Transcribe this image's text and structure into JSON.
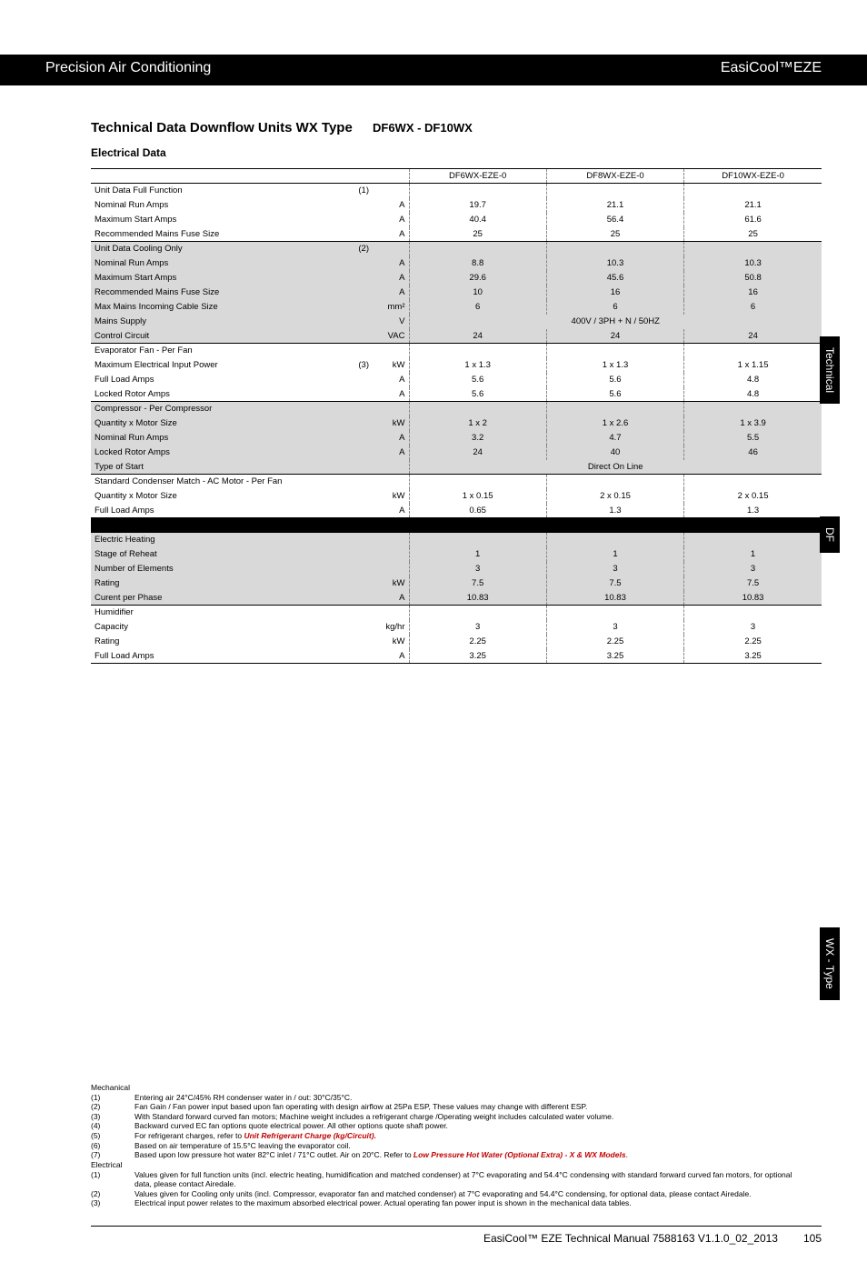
{
  "header": {
    "left": "Precision Air Conditioning",
    "right": "EasiCool™EZE"
  },
  "title": {
    "main": "Technical Data Downflow Units WX Type",
    "sub": "DF6WX - DF10WX"
  },
  "subsection": "Electrical Data",
  "columns": [
    "DF6WX-EZE-0",
    "DF8WX-EZE-0",
    "DF10WX-EZE-0"
  ],
  "groups": [
    {
      "label": "Unit Data Full Function",
      "note": "(1)",
      "shaded": false,
      "rows": [
        {
          "label": "Nominal Run Amps",
          "unit": "A",
          "vals": [
            "19.7",
            "21.1",
            "21.1"
          ]
        },
        {
          "label": "Maximum Start Amps",
          "unit": "A",
          "vals": [
            "40.4",
            "56.4",
            "61.6"
          ]
        },
        {
          "label": "Recommended Mains Fuse Size",
          "unit": "A",
          "vals": [
            "25",
            "25",
            "25"
          ]
        }
      ]
    },
    {
      "label": "Unit Data Cooling Only",
      "note": "(2)",
      "shaded": true,
      "rows": [
        {
          "label": "Nominal Run Amps",
          "unit": "A",
          "vals": [
            "8.8",
            "10.3",
            "10.3"
          ]
        },
        {
          "label": "Maximum Start Amps",
          "unit": "A",
          "vals": [
            "29.6",
            "45.6",
            "50.8"
          ]
        },
        {
          "label": "Recommended Mains Fuse Size",
          "unit": "A",
          "vals": [
            "10",
            "16",
            "16"
          ]
        },
        {
          "label": "Max Mains Incoming Cable Size",
          "unit": "mm²",
          "vals": [
            "6",
            "6",
            "6"
          ]
        },
        {
          "label": "Mains Supply",
          "unit": "V",
          "span": "400V / 3PH + N / 50HZ"
        },
        {
          "label": "Control Circuit",
          "unit": "VAC",
          "vals": [
            "24",
            "24",
            "24"
          ]
        }
      ]
    },
    {
      "label": "Evaporator Fan - Per Fan",
      "shaded": false,
      "rows": [
        {
          "label": "Maximum Electrical Input Power",
          "note": "(3)",
          "unit": "kW",
          "vals": [
            "1 x 1.3",
            "1 x 1.3",
            "1 x 1.15"
          ]
        },
        {
          "label": "Full Load Amps",
          "unit": "A",
          "vals": [
            "5.6",
            "5.6",
            "4.8"
          ]
        },
        {
          "label": "Locked Rotor Amps",
          "unit": "A",
          "vals": [
            "5.6",
            "5.6",
            "4.8"
          ]
        }
      ]
    },
    {
      "label": "Compressor - Per Compressor",
      "shaded": true,
      "rows": [
        {
          "label": "Quantity x Motor Size",
          "unit": "kW",
          "vals": [
            "1 x 2",
            "1 x 2.6",
            "1 x 3.9"
          ]
        },
        {
          "label": "Nominal Run Amps",
          "unit": "A",
          "vals": [
            "3.2",
            "4.7",
            "5.5"
          ]
        },
        {
          "label": "Locked Rotor Amps",
          "unit": "A",
          "vals": [
            "24",
            "40",
            "46"
          ]
        },
        {
          "label": "Type of Start",
          "unit": "",
          "span": "Direct On Line"
        }
      ]
    },
    {
      "label": "Standard Condenser Match - AC Motor - Per Fan",
      "shaded": false,
      "rows": [
        {
          "label": "Quantity x Motor Size",
          "unit": "kW",
          "vals": [
            "1 x 0.15",
            "2 x 0.15",
            "2 x 0.15"
          ]
        },
        {
          "label": "Full Load Amps",
          "unit": "A",
          "vals": [
            "0.65",
            "1.3",
            "1.3"
          ]
        }
      ]
    }
  ],
  "blackbreak": true,
  "groups2": [
    {
      "label": "Electric Heating",
      "shaded": true,
      "rows": [
        {
          "label": "Stage of Reheat",
          "unit": "",
          "vals": [
            "1",
            "1",
            "1"
          ]
        },
        {
          "label": "Number of Elements",
          "unit": "",
          "vals": [
            "3",
            "3",
            "3"
          ]
        },
        {
          "label": "Rating",
          "unit": "kW",
          "vals": [
            "7.5",
            "7.5",
            "7.5"
          ]
        },
        {
          "label": "Curent per Phase",
          "unit": "A",
          "vals": [
            "10.83",
            "10.83",
            "10.83"
          ]
        }
      ]
    },
    {
      "label": "Humidifier",
      "shaded": false,
      "rows": [
        {
          "label": "Capacity",
          "unit": "kg/hr",
          "vals": [
            "3",
            "3",
            "3"
          ]
        },
        {
          "label": "Rating",
          "unit": "kW",
          "vals": [
            "2.25",
            "2.25",
            "2.25"
          ]
        },
        {
          "label": "Full Load Amps",
          "unit": "A",
          "vals": [
            "3.25",
            "3.25",
            "3.25"
          ]
        }
      ]
    }
  ],
  "sidetabs": [
    "Technical",
    "DF",
    "WX - Type"
  ],
  "footnotes": {
    "mech_label": "Mechanical",
    "mech": [
      [
        "(1)",
        "Entering air 24°C/45% RH condenser water in / out: 30°C/35°C."
      ],
      [
        "(2)",
        "Fan Gain / Fan power input based upon fan operating with design airflow at 25Pa ESP, These values may change with different ESP."
      ],
      [
        "(3)",
        "With Standard forward curved fan motors; Machine weight includes a refrigerant charge /Operating weight includes calculated water volume."
      ],
      [
        "(4)",
        "Backward curved EC fan options quote electrical power. All other options quote shaft power."
      ],
      [
        "(5)",
        "For refrigerant charges, refer to "
      ],
      [
        "(6)",
        "Based on air temperature of 15.5°C leaving the evaporator coil."
      ],
      [
        "(7)",
        "Based upon low pressure hot water 82°C inlet / 71°C outlet. Air on 20°C. Refer to "
      ]
    ],
    "mech5_red": "Unit Refrigerant Charge (kg/Circuit).",
    "mech7_red": "Low Pressure Hot Water (Optional Extra) - X & WX Models",
    "elec_label": "Electrical",
    "elec": [
      [
        "(1)",
        "Values given for full function units (incl. electric heating, humidification and matched condenser) at 7°C evaporating and 54.4°C condensing with standard forward curved fan motors, for optional data, please contact Airedale."
      ],
      [
        "(2)",
        "Values given for Cooling only units (incl. Compressor, evaporator fan and matched condenser) at 7°C evaporating and 54.4°C condensing, for optional data, please contact Airedale."
      ],
      [
        "(3)",
        "Electrical input power relates to the maximum absorbed electrical power. Actual operating fan power input is shown in the mechanical data tables."
      ]
    ]
  },
  "footer": {
    "text": "EasiCool™ EZE Technical Manual 7588163 V1.1.0_02_2013",
    "page": "105"
  }
}
